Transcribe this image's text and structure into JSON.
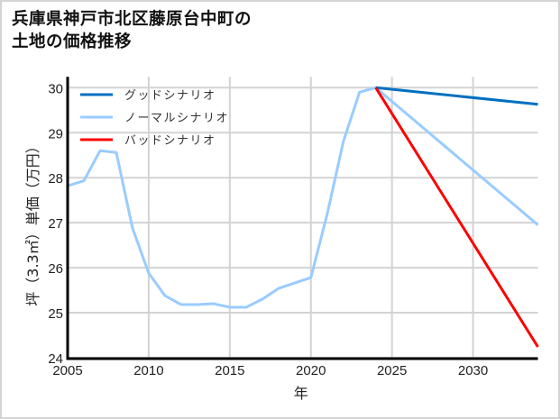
{
  "title_line1": "兵庫県神戸市北区藤原台中町の",
  "title_line2": "土地の価格推移",
  "chart_data": {
    "type": "line",
    "title": "兵庫県神戸市北区藤原台中町の土地の価格推移",
    "xlabel": "年",
    "ylabel": "坪（3.3㎡）単価（万円）",
    "xlim": [
      2005,
      2034
    ],
    "ylim": [
      24,
      30
    ],
    "xticks": [
      2005,
      2010,
      2015,
      2020,
      2025,
      2030
    ],
    "yticks": [
      24,
      25,
      26,
      27,
      28,
      29,
      30
    ],
    "grid": true,
    "legend_position": "upper left",
    "series": [
      {
        "name": "グッドシナリオ",
        "color": "#0070c0",
        "x": [
          2024,
          2034
        ],
        "values": [
          30.0,
          29.63
        ]
      },
      {
        "name": "ノーマルシナリオ",
        "color": "#99ccff",
        "x": [
          2005,
          2006,
          2007,
          2008,
          2009,
          2010,
          2011,
          2012,
          2013,
          2014,
          2015,
          2016,
          2017,
          2018,
          2019,
          2020,
          2021,
          2022,
          2023,
          2024,
          2034
        ],
        "values": [
          27.82,
          27.93,
          28.6,
          28.56,
          26.88,
          25.88,
          25.38,
          25.18,
          25.18,
          25.2,
          25.12,
          25.12,
          25.3,
          25.54,
          25.66,
          25.78,
          27.18,
          28.8,
          29.9,
          30.0,
          26.95
        ]
      },
      {
        "name": "バッドシナリオ",
        "color": "#ff0000",
        "x": [
          2024,
          2034
        ],
        "values": [
          30.0,
          24.24
        ]
      }
    ]
  }
}
